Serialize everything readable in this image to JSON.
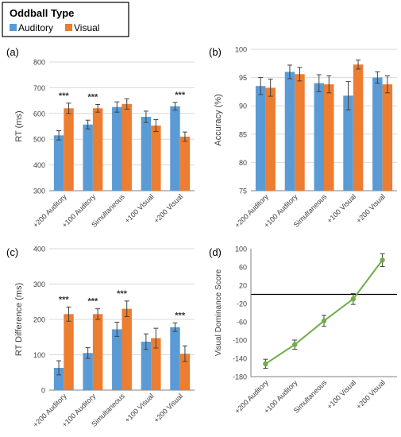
{
  "legend": {
    "title": "Oddball Type",
    "items": [
      {
        "label": "Auditory",
        "color": "#5b9bd5"
      },
      {
        "label": "Visual",
        "color": "#ed7d31"
      }
    ]
  },
  "colors": {
    "auditory": "#5b9bd5",
    "visual": "#ed7d31",
    "line": "#70ad47",
    "grid": "#d9d9d9",
    "axis": "#808080"
  },
  "chart_data": [
    {
      "panel": "(a)",
      "type": "bar",
      "ylabel": "RT (ms)",
      "ylim": [
        300,
        800
      ],
      "yticks": [
        300,
        400,
        500,
        600,
        700,
        800
      ],
      "grid": true,
      "categories": [
        "+200 Auditory",
        "+100 Auditory",
        "Simultaneous",
        "+100 Visual",
        "+200 Visual"
      ],
      "series": [
        {
          "name": "Auditory",
          "values": [
            515,
            557,
            625,
            587,
            628
          ],
          "errors": [
            18,
            17,
            20,
            22,
            15
          ]
        },
        {
          "name": "Visual",
          "values": [
            620,
            620,
            637,
            553,
            510
          ],
          "errors": [
            20,
            15,
            20,
            23,
            18
          ]
        }
      ],
      "annotations": [
        {
          "category": 0,
          "text": "***"
        },
        {
          "category": 1,
          "text": "***"
        },
        {
          "category": 4,
          "text": "***"
        }
      ]
    },
    {
      "panel": "(b)",
      "type": "bar",
      "ylabel": "Accuracy (%)",
      "ylim": [
        75,
        100
      ],
      "yticks": [
        75,
        80,
        85,
        90,
        95,
        100
      ],
      "grid": true,
      "categories": [
        "+200 Auditory",
        "+100 Auditory",
        "Simultaneous",
        "+100 Visual",
        "+200 Visual"
      ],
      "series": [
        {
          "name": "Auditory",
          "values": [
            93.5,
            96.0,
            94.0,
            91.8,
            95.0
          ],
          "errors": [
            1.5,
            1.2,
            1.5,
            2.5,
            1.0
          ]
        },
        {
          "name": "Visual",
          "values": [
            93.2,
            95.6,
            93.8,
            97.3,
            93.8
          ],
          "errors": [
            1.5,
            1.2,
            1.5,
            0.8,
            1.5
          ]
        }
      ],
      "annotations": []
    },
    {
      "panel": "(c)",
      "type": "bar",
      "ylabel": "RT Difference  (ms)",
      "ylim": [
        0,
        400
      ],
      "yticks": [
        0,
        100,
        200,
        300,
        400
      ],
      "grid": true,
      "categories": [
        "+200 Auditory",
        "+100 Auditory",
        "Simultaneous",
        "+100 Visual",
        "+200 Visual"
      ],
      "series": [
        {
          "name": "Auditory",
          "values": [
            63,
            105,
            172,
            137,
            178
          ],
          "errors": [
            20,
            15,
            20,
            22,
            12
          ]
        },
        {
          "name": "Visual",
          "values": [
            215,
            215,
            230,
            147,
            103
          ],
          "errors": [
            20,
            15,
            22,
            28,
            22
          ]
        }
      ],
      "annotations": [
        {
          "category": 0,
          "text": "***"
        },
        {
          "category": 1,
          "text": "***"
        },
        {
          "category": 2,
          "text": "***"
        },
        {
          "category": 4,
          "text": "***"
        }
      ]
    },
    {
      "panel": "(d)",
      "type": "line",
      "ylabel": "Visual Dominance Score",
      "ylim": [
        -180,
        100
      ],
      "yticks": [
        -180,
        -140,
        -100,
        -60,
        -20,
        20,
        60,
        100
      ],
      "grid": false,
      "zero_line": 0,
      "categories": [
        "+200 Auditory",
        "+100 Auditory",
        "Simultaneous",
        "+100 Visual",
        "+200 Visual"
      ],
      "series": [
        {
          "name": "",
          "values": [
            -152,
            -110,
            -58,
            -10,
            75
          ],
          "errors": [
            10,
            10,
            12,
            12,
            14
          ]
        }
      ]
    }
  ]
}
